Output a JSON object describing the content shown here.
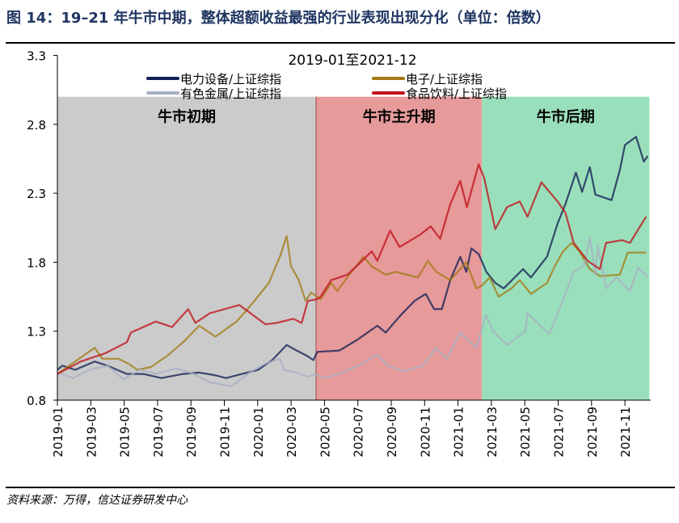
{
  "figure_title": "图 14：19–21 年牛市中期，整体超额收益最强的行业表现出现分化（单位：倍数）",
  "source": "资料来源：万得，信达证券研发中心",
  "chart_data": {
    "type": "line",
    "title": "2019-01至2021-12",
    "xlabel": "",
    "ylabel": "",
    "ylim": [
      0.8,
      3.3
    ],
    "yticks": [
      "0.8",
      "1.3",
      "1.8",
      "2.3",
      "2.8",
      "3.3"
    ],
    "xticks": [
      "2019-01",
      "2019-03",
      "2019-05",
      "2019-07",
      "2019-09",
      "2019-11",
      "2020-01",
      "2020-03",
      "2020-05",
      "2020-07",
      "2020-09",
      "2020-11",
      "2021-01",
      "2021-03",
      "2021-05",
      "2021-07",
      "2021-09",
      "2021-11"
    ],
    "grid": false,
    "legend_placement": "top-center",
    "regions": [
      {
        "label": "牛市初期",
        "start": "2019-01-01",
        "end": "2020-04-16",
        "top": 3.0,
        "color": "#cbcbcb"
      },
      {
        "label": "牛市主升期",
        "start": "2020-04-16",
        "end": "2021-02-14",
        "top": 3.0,
        "color": "#e69a9a"
      },
      {
        "label": "牛市后期",
        "start": "2021-02-14",
        "end": "2021-12-15",
        "top": 3.0,
        "color": "#9adfbb"
      }
    ],
    "series": [
      {
        "name": "电力设备/上证综指",
        "color": "#132055",
        "points": [
          [
            "2019-01-01",
            1.02
          ],
          [
            "2019-01-10",
            1.05
          ],
          [
            "2019-02-03",
            1.02
          ],
          [
            "2019-03-08",
            1.08
          ],
          [
            "2019-04-01",
            1.05
          ],
          [
            "2019-05-06",
            0.99
          ],
          [
            "2019-06-05",
            0.99
          ],
          [
            "2019-07-08",
            0.96
          ],
          [
            "2019-08-17",
            0.99
          ],
          [
            "2019-09-16",
            1.0
          ],
          [
            "2019-10-15",
            0.98
          ],
          [
            "2019-11-04",
            0.96
          ],
          [
            "2019-12-03",
            0.99
          ],
          [
            "2020-01-02",
            1.02
          ],
          [
            "2020-01-27",
            1.09
          ],
          [
            "2020-02-23",
            1.2
          ],
          [
            "2020-03-11",
            1.16
          ],
          [
            "2020-03-30",
            1.12
          ],
          [
            "2020-04-11",
            1.09
          ],
          [
            "2020-04-18",
            1.15
          ],
          [
            "2020-05-28",
            1.16
          ],
          [
            "2020-07-01",
            1.24
          ],
          [
            "2020-08-06",
            1.34
          ],
          [
            "2020-08-21",
            1.29
          ],
          [
            "2020-09-19",
            1.42
          ],
          [
            "2020-10-13",
            1.52
          ],
          [
            "2020-11-03",
            1.57
          ],
          [
            "2020-11-18",
            1.46
          ],
          [
            "2020-12-02",
            1.46
          ],
          [
            "2020-12-17",
            1.67
          ],
          [
            "2021-01-05",
            1.84
          ],
          [
            "2021-01-16",
            1.73
          ],
          [
            "2021-01-25",
            1.9
          ],
          [
            "2021-02-08",
            1.86
          ],
          [
            "2021-02-22",
            1.73
          ],
          [
            "2021-03-08",
            1.65
          ],
          [
            "2021-03-23",
            1.61
          ],
          [
            "2021-04-28",
            1.75
          ],
          [
            "2021-05-12",
            1.69
          ],
          [
            "2021-06-11",
            1.84
          ],
          [
            "2021-06-30",
            2.08
          ],
          [
            "2021-07-14",
            2.22
          ],
          [
            "2021-08-03",
            2.45
          ],
          [
            "2021-08-14",
            2.31
          ],
          [
            "2021-08-28",
            2.49
          ],
          [
            "2021-09-08",
            2.29
          ],
          [
            "2021-10-07",
            2.25
          ],
          [
            "2021-10-22",
            2.47
          ],
          [
            "2021-10-31",
            2.65
          ],
          [
            "2021-11-21",
            2.71
          ],
          [
            "2021-12-05",
            2.53
          ],
          [
            "2021-12-12",
            2.57
          ]
        ]
      },
      {
        "name": "电子/上证综指",
        "color": "#a27a14",
        "points": [
          [
            "2019-01-01",
            0.99
          ],
          [
            "2019-03-08",
            1.18
          ],
          [
            "2019-03-22",
            1.1
          ],
          [
            "2019-04-21",
            1.1
          ],
          [
            "2019-05-10",
            1.06
          ],
          [
            "2019-05-25",
            1.02
          ],
          [
            "2019-06-19",
            1.04
          ],
          [
            "2019-07-18",
            1.12
          ],
          [
            "2019-08-17",
            1.22
          ],
          [
            "2019-09-16",
            1.34
          ],
          [
            "2019-10-15",
            1.26
          ],
          [
            "2019-11-23",
            1.37
          ],
          [
            "2019-12-13",
            1.46
          ],
          [
            "2020-01-21",
            1.65
          ],
          [
            "2020-02-11",
            1.84
          ],
          [
            "2020-02-23",
            1.99
          ],
          [
            "2020-03-01",
            1.77
          ],
          [
            "2020-03-15",
            1.67
          ],
          [
            "2020-03-27",
            1.52
          ],
          [
            "2020-04-07",
            1.58
          ],
          [
            "2020-04-24",
            1.53
          ],
          [
            "2020-05-13",
            1.65
          ],
          [
            "2020-05-24",
            1.59
          ],
          [
            "2020-06-12",
            1.69
          ],
          [
            "2020-07-11",
            1.84
          ],
          [
            "2020-07-26",
            1.77
          ],
          [
            "2020-08-21",
            1.71
          ],
          [
            "2020-09-09",
            1.73
          ],
          [
            "2020-10-19",
            1.69
          ],
          [
            "2020-11-07",
            1.81
          ],
          [
            "2020-11-22",
            1.73
          ],
          [
            "2020-12-17",
            1.67
          ],
          [
            "2021-01-16",
            1.8
          ],
          [
            "2021-02-04",
            1.61
          ],
          [
            "2021-02-14",
            1.63
          ],
          [
            "2021-02-28",
            1.69
          ],
          [
            "2021-03-14",
            1.55
          ],
          [
            "2021-04-07",
            1.61
          ],
          [
            "2021-04-22",
            1.67
          ],
          [
            "2021-05-12",
            1.57
          ],
          [
            "2021-06-11",
            1.65
          ],
          [
            "2021-06-26",
            1.78
          ],
          [
            "2021-07-10",
            1.88
          ],
          [
            "2021-07-25",
            1.94
          ],
          [
            "2021-08-09",
            1.88
          ],
          [
            "2021-08-28",
            1.75
          ],
          [
            "2021-09-16",
            1.7
          ],
          [
            "2021-10-22",
            1.71
          ],
          [
            "2021-11-06",
            1.87
          ],
          [
            "2021-12-09",
            1.87
          ]
        ]
      },
      {
        "name": "有色金属/上证综指",
        "color": "#a6b0c2",
        "points": [
          [
            "2019-01-01",
            1.0
          ],
          [
            "2019-01-29",
            0.96
          ],
          [
            "2019-02-28",
            1.02
          ],
          [
            "2019-04-01",
            1.05
          ],
          [
            "2019-04-30",
            0.95
          ],
          [
            "2019-05-29",
            1.02
          ],
          [
            "2019-06-28",
            0.99
          ],
          [
            "2019-08-04",
            1.03
          ],
          [
            "2019-09-06",
            0.99
          ],
          [
            "2019-10-05",
            0.93
          ],
          [
            "2019-11-14",
            0.9
          ],
          [
            "2019-12-13",
            0.99
          ],
          [
            "2020-01-12",
            1.06
          ],
          [
            "2020-02-11",
            1.1
          ],
          [
            "2020-02-18",
            1.02
          ],
          [
            "2020-03-11",
            1.0
          ],
          [
            "2020-03-30",
            0.97
          ],
          [
            "2020-04-14",
            0.99
          ],
          [
            "2020-04-29",
            0.96
          ],
          [
            "2020-05-28",
            0.99
          ],
          [
            "2020-07-07",
            1.06
          ],
          [
            "2020-08-06",
            1.13
          ],
          [
            "2020-08-25",
            1.05
          ],
          [
            "2020-09-23",
            1.01
          ],
          [
            "2020-10-28",
            1.05
          ],
          [
            "2020-11-22",
            1.18
          ],
          [
            "2020-12-11",
            1.1
          ],
          [
            "2021-01-05",
            1.29
          ],
          [
            "2021-02-04",
            1.18
          ],
          [
            "2021-02-21",
            1.42
          ],
          [
            "2021-03-04",
            1.3
          ],
          [
            "2021-03-29",
            1.2
          ],
          [
            "2021-05-02",
            1.3
          ],
          [
            "2021-05-06",
            1.43
          ],
          [
            "2021-06-15",
            1.28
          ],
          [
            "2021-07-10",
            1.53
          ],
          [
            "2021-07-29",
            1.73
          ],
          [
            "2021-08-18",
            1.78
          ],
          [
            "2021-08-28",
            1.98
          ],
          [
            "2021-09-08",
            1.71
          ],
          [
            "2021-09-12",
            1.92
          ],
          [
            "2021-09-27",
            1.61
          ],
          [
            "2021-10-16",
            1.69
          ],
          [
            "2021-11-10",
            1.59
          ],
          [
            "2021-11-25",
            1.76
          ],
          [
            "2021-12-12",
            1.69
          ]
        ]
      },
      {
        "name": "食品饮料/上证综指",
        "color": "#c0111b",
        "points": [
          [
            "2019-01-01",
            0.99
          ],
          [
            "2019-02-13",
            1.08
          ],
          [
            "2019-03-27",
            1.14
          ],
          [
            "2019-05-06",
            1.22
          ],
          [
            "2019-05-13",
            1.29
          ],
          [
            "2019-06-28",
            1.37
          ],
          [
            "2019-07-27",
            1.33
          ],
          [
            "2019-08-26",
            1.46
          ],
          [
            "2019-09-09",
            1.36
          ],
          [
            "2019-10-05",
            1.43
          ],
          [
            "2019-11-28",
            1.49
          ],
          [
            "2019-12-18",
            1.43
          ],
          [
            "2020-01-15",
            1.35
          ],
          [
            "2020-02-05",
            1.36
          ],
          [
            "2020-03-05",
            1.39
          ],
          [
            "2020-03-20",
            1.36
          ],
          [
            "2020-04-01",
            1.52
          ],
          [
            "2020-04-16",
            1.53
          ],
          [
            "2020-04-24",
            1.55
          ],
          [
            "2020-05-13",
            1.67
          ],
          [
            "2020-06-12",
            1.71
          ],
          [
            "2020-07-01",
            1.78
          ],
          [
            "2020-07-26",
            1.88
          ],
          [
            "2020-08-06",
            1.81
          ],
          [
            "2020-08-29",
            2.03
          ],
          [
            "2020-09-16",
            1.91
          ],
          [
            "2020-10-23",
            2.0
          ],
          [
            "2020-11-12",
            2.06
          ],
          [
            "2020-11-29",
            1.97
          ],
          [
            "2020-12-17",
            2.22
          ],
          [
            "2021-01-05",
            2.39
          ],
          [
            "2021-01-17",
            2.2
          ],
          [
            "2021-02-08",
            2.51
          ],
          [
            "2021-02-18",
            2.41
          ],
          [
            "2021-03-08",
            2.04
          ],
          [
            "2021-03-29",
            2.2
          ],
          [
            "2021-04-22",
            2.24
          ],
          [
            "2021-05-06",
            2.13
          ],
          [
            "2021-06-01",
            2.38
          ],
          [
            "2021-06-30",
            2.24
          ],
          [
            "2021-07-14",
            2.16
          ],
          [
            "2021-07-29",
            1.94
          ],
          [
            "2021-08-24",
            1.81
          ],
          [
            "2021-09-16",
            1.75
          ],
          [
            "2021-09-27",
            1.94
          ],
          [
            "2021-10-26",
            1.96
          ],
          [
            "2021-11-10",
            1.94
          ],
          [
            "2021-12-09",
            2.13
          ]
        ]
      }
    ]
  }
}
